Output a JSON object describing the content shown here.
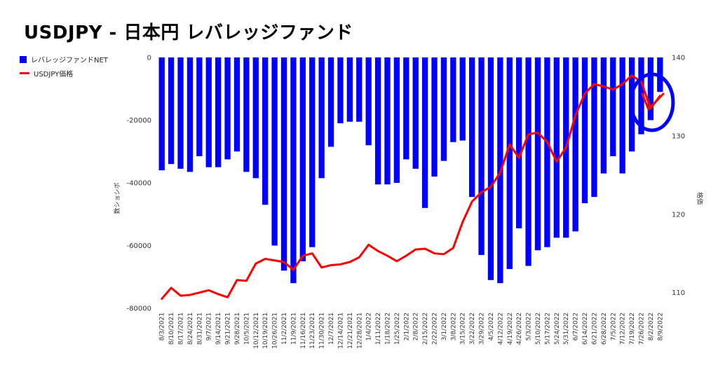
{
  "title": "USDJPY - 日本円 レバレッジファンド",
  "chart_data": {
    "type": "bar+line",
    "title": "USDJPY - 日本円 レバレッジファンド",
    "categories": [
      "8/3/2021",
      "8/10/2021",
      "8/17/2021",
      "8/24/2021",
      "8/31/2021",
      "9/7/2021",
      "9/14/2021",
      "9/21/2021",
      "9/28/2021",
      "10/5/2021",
      "10/12/2021",
      "10/19/2021",
      "10/26/2021",
      "11/2/2021",
      "11/9/2021",
      "11/16/2021",
      "11/23/2021",
      "11/30/2021",
      "12/7/2021",
      "12/14/2021",
      "12/21/2021",
      "12/28/2021",
      "1/4/2022",
      "1/11/2022",
      "1/18/2022",
      "1/25/2022",
      "2/1/2022",
      "2/8/2022",
      "2/15/2022",
      "2/22/2022",
      "3/1/2022",
      "3/8/2022",
      "3/15/2022",
      "3/22/2022",
      "3/29/2022",
      "4/5/2022",
      "4/12/2022",
      "4/19/2022",
      "4/26/2022",
      "5/3/2022",
      "5/10/2022",
      "5/17/2022",
      "5/24/2022",
      "5/31/2022",
      "6/7/2022",
      "6/14/2022",
      "6/21/2022",
      "6/28/2022",
      "7/5/2022",
      "7/12/2022",
      "7/19/2022",
      "7/26/2022",
      "8/2/2022",
      "8/9/2022"
    ],
    "x_tick_labels": [
      "8/3/2021",
      "8/10/2021",
      "8/17/2021",
      "8/24/2021",
      "8/31/2021",
      "9/7/2021",
      "9/14/2021",
      "9/21/2021",
      "9/28/2021",
      "10/5/2021",
      "10/12/2021",
      "10/19/2021",
      "10/26/2021",
      "11/2/2021",
      "11/9/2021",
      "11/16/2021",
      "11/23/2021",
      "11/30/2021",
      "12/7/2021",
      "12/14/2021",
      "12/21/2021",
      "12/28/2021",
      "1/4/2022",
      "1/11/2022",
      "1/18/2022",
      "1/25/2022",
      "2/1/2022",
      "2/8/2022",
      "2/15/2022",
      "2/22/2022",
      "3/1/2022",
      "3/8/2022",
      "3/15/2022",
      "3/22/2022",
      "3/29/2022",
      "4/5/2022",
      "4/12/2022",
      "4/19/2022",
      "4/26/2022",
      "5/3/2022",
      "5/10/2022",
      "5/17/2022",
      "5/24/2022",
      "5/31/2022",
      "6/7/2022",
      "6/14/2022",
      "6/21/2022",
      "6/28/2022",
      "7/5/2022",
      "7/12/2022",
      "7/19/2022",
      "7/26/2022",
      "8/2/2022",
      "8/9/2022"
    ],
    "series": [
      {
        "name": "レバレッジファンドNET",
        "type": "bar",
        "axis": "left",
        "color": "#0000ff",
        "values": [
          -36000,
          -34000,
          -35500,
          -36500,
          -31500,
          -35000,
          -35000,
          -32500,
          -30000,
          -36500,
          -38500,
          -47000,
          -60000,
          -68000,
          -72000,
          -65000,
          -60500,
          -38500,
          -28500,
          -21000,
          -20500,
          -20500,
          -28000,
          -40500,
          -40500,
          -40000,
          -32500,
          -35500,
          -48000,
          -38000,
          -33000,
          -27000,
          -26500,
          -44500,
          -63000,
          -71000,
          -72000,
          -67500,
          -54500,
          -66500,
          -61500,
          -60500,
          -57500,
          -57500,
          -55500,
          -46500,
          -44500,
          -37000,
          -31500,
          -37000,
          -30000,
          -24500,
          -20000,
          -11000
        ]
      },
      {
        "name": "USDJPY価格",
        "type": "line",
        "axis": "right",
        "color": "#ff0000",
        "values": [
          109.2,
          110.6,
          109.6,
          109.7,
          110.0,
          110.3,
          109.8,
          109.4,
          111.6,
          111.5,
          113.7,
          114.3,
          114.1,
          113.9,
          112.9,
          114.7,
          115.0,
          113.2,
          113.5,
          113.6,
          113.9,
          114.5,
          116.1,
          115.3,
          114.7,
          114.0,
          114.7,
          115.5,
          115.6,
          115.0,
          114.9,
          115.7,
          119.0,
          121.6,
          122.8,
          123.5,
          125.3,
          128.9,
          127.2,
          130.2,
          130.4,
          129.2,
          126.7,
          128.5,
          132.6,
          135.4,
          136.6,
          136.3,
          135.9,
          136.6,
          137.7,
          136.9,
          133.5,
          135.1
        ]
      }
    ],
    "y_left": {
      "label": "数ショシボ",
      "min": -80000,
      "max": 0,
      "ticks": [
        "0",
        "-20000",
        "-40000",
        "-60000",
        "-80000"
      ]
    },
    "y_right": {
      "label": "格価",
      "min": 108,
      "max": 140,
      "ticks": [
        "140",
        "130",
        "120",
        "110"
      ]
    },
    "legend": {
      "placement": "left-top",
      "entries": [
        "レバレッジファンドNET",
        "USDJPY価格"
      ]
    },
    "grid": false,
    "annotation": {
      "shape": "ellipse",
      "color": "#0000ff",
      "highlight_categories": [
        "7/26/2022",
        "8/9/2022"
      ],
      "inner_mark_color": "#ff0000"
    }
  }
}
